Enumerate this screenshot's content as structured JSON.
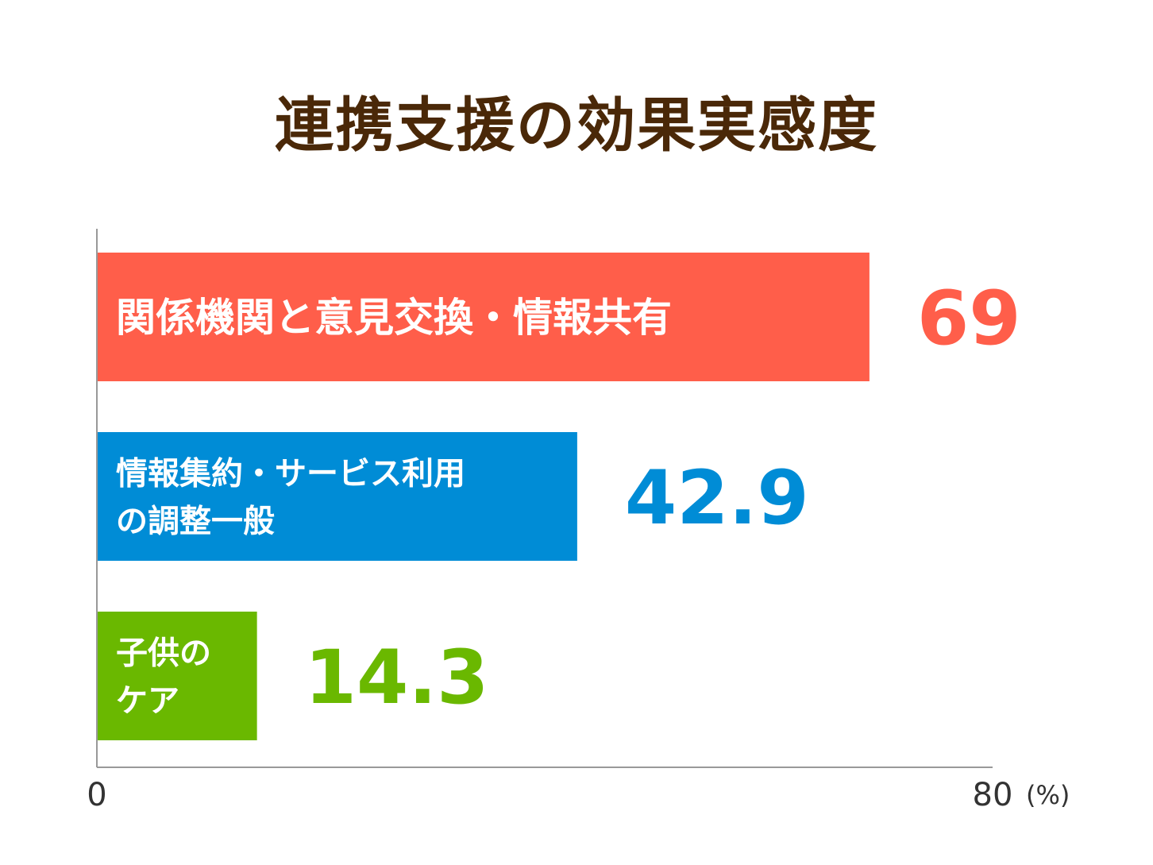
{
  "chart_data": {
    "type": "bar",
    "orientation": "horizontal",
    "title": "連携支援の効果実感度",
    "categories": [
      [
        "関係機関と意見交換・情報共有"
      ],
      [
        "情報集約・サービス利用",
        "の調整一般"
      ],
      [
        "子供の",
        "ケア"
      ]
    ],
    "values": [
      69,
      42.9,
      14.3
    ],
    "value_labels": [
      "69",
      "42.9",
      "14.3"
    ],
    "colors": [
      "#ff5e4a",
      "#008cd6",
      "#6ab800"
    ],
    "xlim": [
      0,
      80
    ],
    "x_tick_labels": [
      "0",
      "80"
    ],
    "unit": "(%)",
    "grid": false,
    "legend": "none"
  }
}
